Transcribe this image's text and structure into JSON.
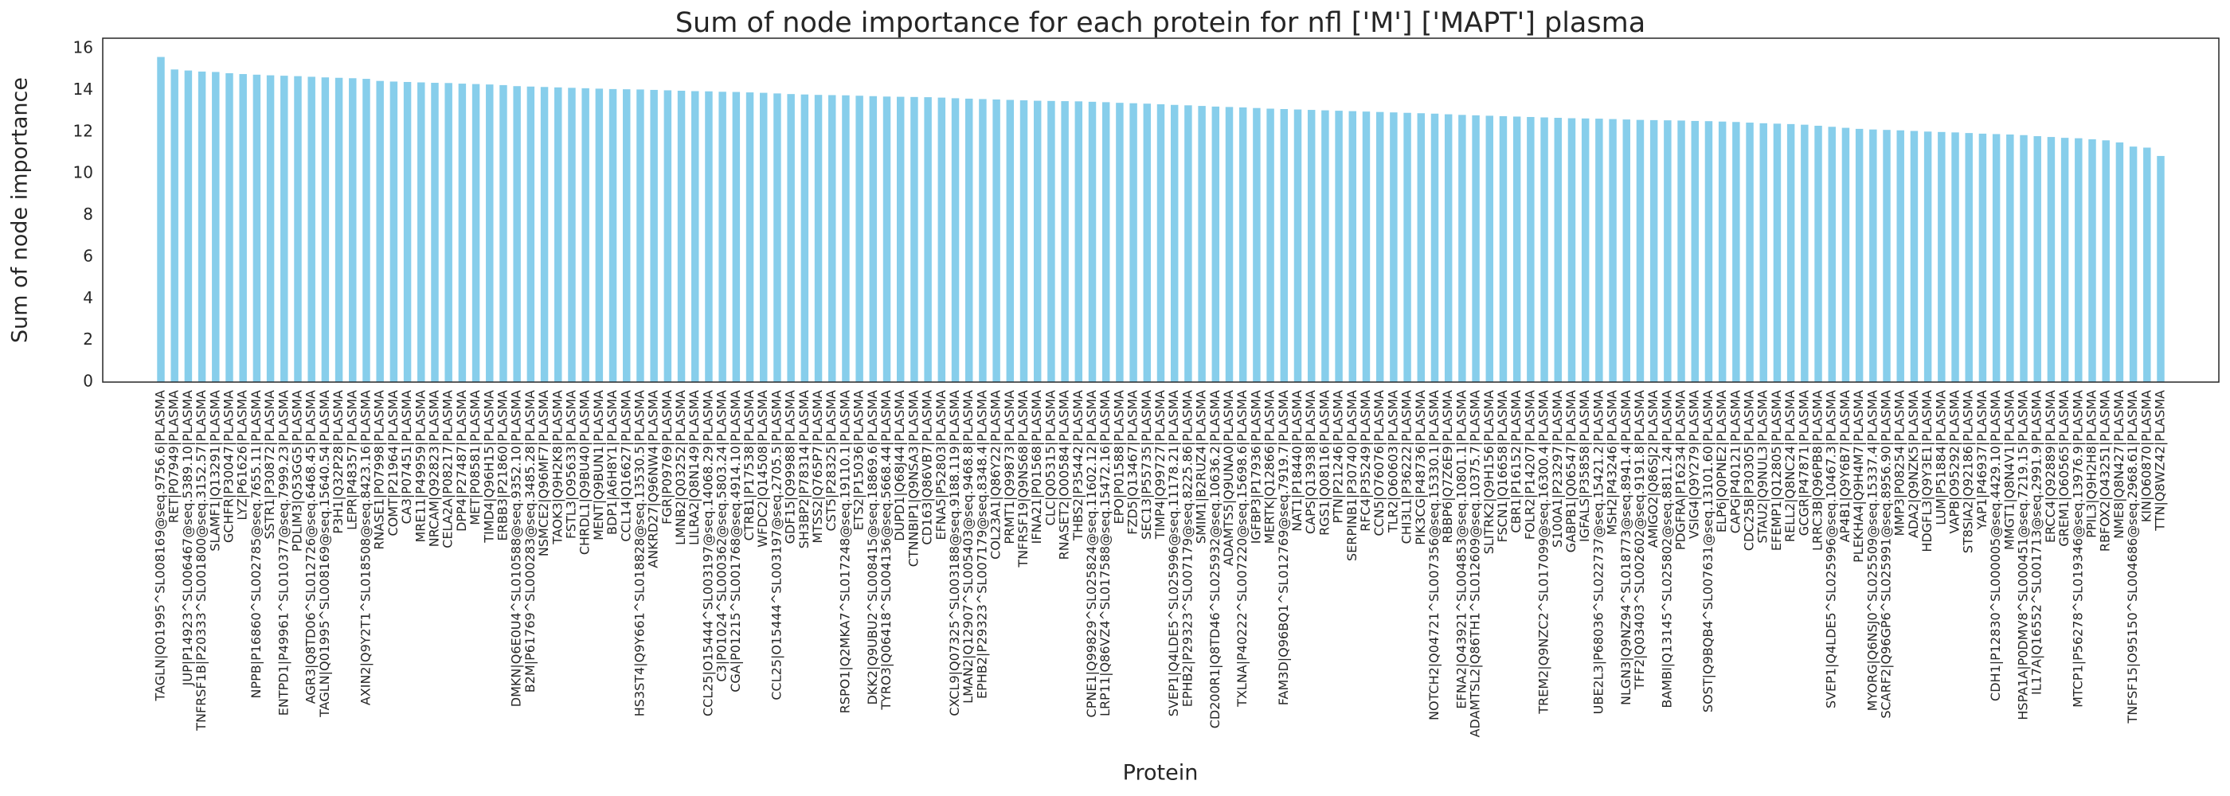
{
  "chart_data": {
    "type": "bar",
    "title": "Sum of node importance for each protein for nfl ['M'] ['MAPT'] plasma",
    "x_label": "Protein",
    "y_label": "Sum of node importance",
    "color": "#87ceeb",
    "grid": false,
    "ylim": [
      0,
      16.5
    ],
    "yticks": [
      0,
      2,
      4,
      6,
      8,
      10,
      12,
      14,
      16
    ],
    "categories": [
      "TAGLN|Q01995^SL008169@seq.9756.6|PLASMA",
      "RET|P07949|PLASMA",
      "JUP|P14923^SL006467@seq.5389.10|PLASMA",
      "TNFRSF1B|P20333^SL001800@seq.3152.57|PLASMA",
      "SLAMF1|Q13291|PLASMA",
      "GCHFR|P30047|PLASMA",
      "LYZ|P61626|PLASMA",
      "NPPB|P16860^SL002785@seq.7655.11|PLASMA",
      "SSTR1|P30872|PLASMA",
      "ENTPD1|P49961^SL010377@seq.7999.23|PLASMA",
      "PDLIM3|Q53GG5|PLASMA",
      "AGR3|Q8TD06^SL012726@seq.6468.45|PLASMA",
      "TAGLN|Q01995^SL008169@seq.15640.54|PLASMA",
      "P3H1|Q32P28|PLASMA",
      "LEPR|P48357|PLASMA",
      "AXIN2|Q9Y2T1^SL018508@seq.8423.16|PLASMA",
      "RNASE1|P07998|PLASMA",
      "COMT|P21964|PLASMA",
      "CA3|P07451|PLASMA",
      "MRE11|P49959|PLASMA",
      "NRCAM|Q92823|PLASMA",
      "CELA2A|P08217|PLASMA",
      "DPP4|P27487|PLASMA",
      "MET|P08581|PLASMA",
      "TIMD4|Q96H15|PLASMA",
      "ERBB3|P21860|PLASMA",
      "DMKN|Q6E0U4^SL010588@seq.9352.10|PLASMA",
      "B2M|P61769^SL000283@seq.3485.28|PLASMA",
      "NSMCE2|Q96MF7|PLASMA",
      "TAOK3|Q9H2K8|PLASMA",
      "FSTL3|O95633|PLASMA",
      "CHRDL1|Q9BU40|PLASMA",
      "MENT|Q9BUN1|PLASMA",
      "BDP1|A6H8Y1|PLASMA",
      "CCL14|Q16627|PLASMA",
      "HS3ST4|Q9Y661^SL018828@seq.13530.5|PLASMA",
      "ANKRD27|Q96NW4|PLASMA",
      "FGR|P09769|PLASMA",
      "LMNB2|Q03252|PLASMA",
      "LILRA2|Q8N149|PLASMA",
      "CCL25|O15444^SL003197@seq.14068.29|PLASMA",
      "C3|P01024^SL000362@seq.5803.24|PLASMA",
      "CGA|P01215^SL001768@seq.4914.10|PLASMA",
      "CTRB1|P17538|PLASMA",
      "WFDC2|Q14508|PLASMA",
      "CCL25|O15444^SL003197@seq.2705.5|PLASMA",
      "GDF15|Q99988|PLASMA",
      "SH3BP2|P78314|PLASMA",
      "MTSS2|Q765P7|PLASMA",
      "CST5|P28325|PLASMA",
      "RSPO1|Q2MKA7^SL017248@seq.19110.1|PLASMA",
      "ETS2|P15036|PLASMA",
      "DKK2|Q9UBU2^SL008415@seq.18869.6|PLASMA",
      "TYRO3|Q06418^SL004136@seq.5668.44|PLASMA",
      "DUPD1|Q68J44|PLASMA",
      "CTNNBIP1|Q9NSA3|PLASMA",
      "CD163|Q86VB7|PLASMA",
      "EFNA5|P52803|PLASMA",
      "CXCL9|Q07325^SL003188@seq.9188.119|PLASMA",
      "LMAN2|Q12907^SL005403@seq.9468.8|PLASMA",
      "EPHB2|P29323^SL007179@seq.8348.4|PLASMA",
      "COL23A1|Q86Y22|PLASMA",
      "PRMT1|Q99873|PLASMA",
      "TNFRSF19|Q9NS68|PLASMA",
      "IFNA21|P01568|PLASMA",
      "CLC|Q05315|PLASMA",
      "RNASET2|O00584|PLASMA",
      "THBS2|P35442|PLASMA",
      "CPNE1|Q99829^SL025824@seq.11602.12|PLASMA",
      "LRP11|Q86VZ4^SL017588@seq.15472.16|PLASMA",
      "EPO|P01588|PLASMA",
      "FZD5|Q13467|PLASMA",
      "SEC13|P55735|PLASMA",
      "TIMP4|Q99727|PLASMA",
      "SVEP1|Q4LDE5^SL025996@seq.11178.21|PLASMA",
      "EPHB2|P29323^SL007179@seq.8225.86|PLASMA",
      "SMIM1|B2RUZ4|PLASMA",
      "CD200R1|Q8TD46^SL025932@seq.10636.2|PLASMA",
      "ADAMTS5|Q9UNA0|PLASMA",
      "TXLNA|P40222^SL007220@seq.15698.6|PLASMA",
      "IGFBP3|P17936|PLASMA",
      "MERTK|Q12866|PLASMA",
      "FAM3D|Q96BQ1^SL012769@seq.7919.7|PLASMA",
      "NAT1|P18440|PLASMA",
      "CAPS|Q13938|PLASMA",
      "RGS1|Q08116|PLASMA",
      "PTN|P21246|PLASMA",
      "SERPINB1|P30740|PLASMA",
      "RFC4|P35249|PLASMA",
      "CCN5|O76076|PLASMA",
      "TLR2|O60603|PLASMA",
      "CHI3L1|P36222|PLASMA",
      "PIK3CG|P48736|PLASMA",
      "NOTCH2|Q04721^SL007356@seq.15330.1|PLASMA",
      "RBBP6|Q7Z6E9|PLASMA",
      "EFNA2|O43921^SL004853@seq.10801.1|PLASMA",
      "ADAMTSL2|Q86TH1^SL012609@seq.10375.7|PLASMA",
      "SLITRK2|Q9H156|PLASMA",
      "FSCN1|Q16658|PLASMA",
      "CBR1|P16152|PLASMA",
      "FOLR2|P14207|PLASMA",
      "TREM2|Q9NZC2^SL017099@seq.16300.4|PLASMA",
      "S100A1|P23297|PLASMA",
      "GABPB1|Q06547|PLASMA",
      "IGFALS|P35858|PLASMA",
      "UBE2L3|P68036^SL022737@seq.15421.2|PLASMA",
      "MSH2|P43246|PLASMA",
      "NLGN3|Q9NZ94^SL018773@seq.8941.4|PLASMA",
      "TFF2|Q03403^SL002602@seq.9191.8|PLASMA",
      "AMIGO2|Q86SJ2|PLASMA",
      "BAMBI|Q13145^SL025802@seq.8811.24|PLASMA",
      "PDGFRA|P16234|PLASMA",
      "VSIG4|Q9Y279|PLASMA",
      "SOST|Q9BQB4^SL007631@seq.13101.60|PLASMA",
      "ELP6|Q0PNE2|PLASMA",
      "CAPG|P40121|PLASMA",
      "CDC25B|P30305|PLASMA",
      "STAU2|Q9NUL3|PLASMA",
      "EFEMP1|Q12805|PLASMA",
      "RELL2|Q8NC24|PLASMA",
      "GCGR|P47871|PLASMA",
      "LRRC3B|Q96PB8|PLASMA",
      "SVEP1|Q4LDE5^SL025996@seq.10467.3|PLASMA",
      "AP4B1|Q9Y6B7|PLASMA",
      "PLEKHA4|Q9H4M7|PLASMA",
      "MYORG|Q6NSJ0^SL025509@seq.15337.4|PLASMA",
      "SCARF2|Q96GP6^SL025991@seq.8956.90|PLASMA",
      "MMP3|P08254|PLASMA",
      "ADA2|Q9NZK5|PLASMA",
      "HDGFL3|Q9Y3E1|PLASMA",
      "LUM|P51884|PLASMA",
      "VAPB|O95292|PLASMA",
      "ST8SIA2|Q92186|PLASMA",
      "YAP1|P46937|PLASMA",
      "CDH1|P12830^SL000005@seq.4429.10|PLASMA",
      "MMGT1|Q8N4V1|PLASMA",
      "HSPA1A|P0DMV8^SL000451@seq.7219.15|PLASMA",
      "IL17A|Q16552^SL001713@seq.2991.9|PLASMA",
      "ERCC4|Q92889|PLASMA",
      "GREM1|O60565|PLASMA",
      "MTCP1|P56278^SL019346@seq.13976.9|PLASMA",
      "PPIL3|Q9H2H8|PLASMA",
      "RBFOX2|O43251|PLASMA",
      "NME8|Q8N427|PLASMA",
      "TNFSF15|O95150^SL004686@seq.2968.61|PLASMA",
      "KIN|O60870|PLASMA",
      "TTN|Q8WZ42|PLASMA"
    ],
    "values": [
      15.6,
      15.0,
      14.95,
      14.9,
      14.88,
      14.82,
      14.78,
      14.75,
      14.72,
      14.7,
      14.68,
      14.65,
      14.62,
      14.6,
      14.58,
      14.55,
      14.45,
      14.42,
      14.4,
      14.38,
      14.36,
      14.35,
      14.32,
      14.3,
      14.28,
      14.25,
      14.2,
      14.18,
      14.16,
      14.14,
      14.12,
      14.1,
      14.08,
      14.06,
      14.05,
      14.04,
      14.02,
      14.0,
      13.98,
      13.96,
      13.95,
      13.93,
      13.92,
      13.9,
      13.88,
      13.85,
      13.82,
      13.8,
      13.78,
      13.77,
      13.76,
      13.74,
      13.72,
      13.7,
      13.69,
      13.68,
      13.67,
      13.65,
      13.62,
      13.6,
      13.58,
      13.56,
      13.54,
      13.52,
      13.5,
      13.49,
      13.48,
      13.47,
      13.45,
      13.43,
      13.4,
      13.38,
      13.36,
      13.33,
      13.3,
      13.28,
      13.25,
      13.22,
      13.2,
      13.18,
      13.15,
      13.12,
      13.1,
      13.08,
      13.06,
      13.04,
      13.02,
      13.0,
      12.98,
      12.96,
      12.94,
      12.92,
      12.9,
      12.88,
      12.85,
      12.82,
      12.8,
      12.78,
      12.76,
      12.74,
      12.72,
      12.7,
      12.68,
      12.66,
      12.65,
      12.64,
      12.62,
      12.6,
      12.58,
      12.57,
      12.56,
      12.55,
      12.53,
      12.52,
      12.5,
      12.48,
      12.45,
      12.42,
      12.4,
      12.38,
      12.35,
      12.3,
      12.25,
      12.2,
      12.15,
      12.12,
      12.1,
      12.08,
      12.05,
      12.02,
      12.0,
      11.98,
      11.95,
      11.92,
      11.9,
      11.88,
      11.85,
      11.8,
      11.76,
      11.72,
      11.7,
      11.65,
      11.6,
      11.5,
      11.3,
      11.25,
      10.85
    ]
  }
}
